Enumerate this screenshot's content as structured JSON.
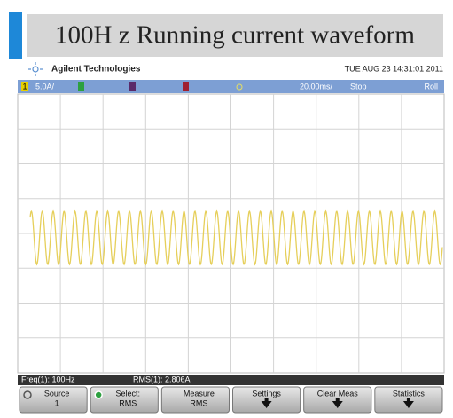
{
  "header": {
    "title": "100H z Running current waveform"
  },
  "scope": {
    "brand": "Agilent Technologies",
    "timestamp": "TUE AUG 23 14:31:01 2011",
    "status": {
      "channel": "1",
      "scale": "5.0A/",
      "timebase": "20.00ms/",
      "state": "Stop",
      "mode": "Roll"
    },
    "measurements": [
      "Freq(1): 100Hz",
      "RMS(1): 2.806A"
    ],
    "softkeys": [
      {
        "label": "Source",
        "value": "1"
      },
      {
        "label": "Select:",
        "value": "RMS"
      },
      {
        "label": "Measure",
        "value": "RMS"
      },
      {
        "label": "Settings"
      },
      {
        "label": "Clear Meas"
      },
      {
        "label": "Statistics"
      }
    ]
  }
}
